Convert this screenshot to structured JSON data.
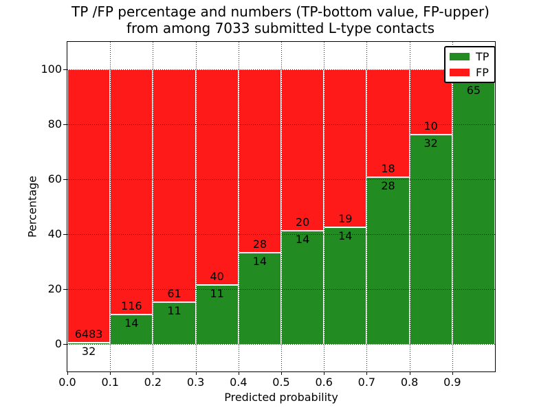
{
  "title": {
    "line1": "TP /FP percentage and numbers (TP-bottom value, FP-upper)",
    "line2": "from among 7033 submitted L-type contacts"
  },
  "chart_data": {
    "type": "bar",
    "stacked": true,
    "title": "TP /FP percentage and numbers (TP-bottom value, FP-upper)\nfrom among 7033 submitted L-type contacts",
    "xlabel": "Predicted probability",
    "ylabel": "Percentage",
    "total_submitted_contacts": 7033,
    "xlim": [
      0.0,
      1.0
    ],
    "ylim": [
      -10,
      110
    ],
    "grid": true,
    "xticks": [
      0.0,
      0.1,
      0.2,
      0.3,
      0.4,
      0.5,
      0.6,
      0.7,
      0.8,
      0.9
    ],
    "xtick_labels": [
      "0.0",
      "0.1",
      "0.2",
      "0.3",
      "0.4",
      "0.5",
      "0.6",
      "0.7",
      "0.8",
      "0.9"
    ],
    "yticks": [
      0,
      20,
      40,
      60,
      80,
      100
    ],
    "ytick_labels": [
      "0",
      "20",
      "40",
      "60",
      "80",
      "100"
    ],
    "bin_edges": [
      0.0,
      0.1,
      0.2,
      0.3,
      0.4,
      0.5,
      0.6,
      0.7,
      0.8,
      0.9,
      1.0
    ],
    "colors": {
      "tp": "#228b22",
      "fp": "#ff1a1a"
    },
    "legend": {
      "position": "upper right",
      "entries": [
        {
          "label": "TP",
          "color": "#228b22"
        },
        {
          "label": "FP",
          "color": "#ff1a1a"
        }
      ]
    },
    "bars": [
      {
        "x_range": [
          0.0,
          0.1
        ],
        "tp_count": 32,
        "fp_count": 6483,
        "tp_pct": 0.49,
        "tp_label": "32",
        "fp_label": "6483"
      },
      {
        "x_range": [
          0.1,
          0.2
        ],
        "tp_count": 14,
        "fp_count": 116,
        "tp_pct": 10.77,
        "tp_label": "14",
        "fp_label": "116"
      },
      {
        "x_range": [
          0.2,
          0.3
        ],
        "tp_count": 11,
        "fp_count": 61,
        "tp_pct": 15.28,
        "tp_label": "11",
        "fp_label": "61"
      },
      {
        "x_range": [
          0.3,
          0.4
        ],
        "tp_count": 11,
        "fp_count": 40,
        "tp_pct": 21.57,
        "tp_label": "11",
        "fp_label": "40"
      },
      {
        "x_range": [
          0.4,
          0.5
        ],
        "tp_count": 14,
        "fp_count": 28,
        "tp_pct": 33.33,
        "tp_label": "14",
        "fp_label": "28"
      },
      {
        "x_range": [
          0.5,
          0.6
        ],
        "tp_count": 14,
        "fp_count": 20,
        "tp_pct": 41.18,
        "tp_label": "14",
        "fp_label": "20"
      },
      {
        "x_range": [
          0.6,
          0.7
        ],
        "tp_count": 14,
        "fp_count": 19,
        "tp_pct": 42.42,
        "tp_label": "14",
        "fp_label": "19"
      },
      {
        "x_range": [
          0.7,
          0.8
        ],
        "tp_count": 28,
        "fp_count": 18,
        "tp_pct": 60.87,
        "tp_label": "28",
        "fp_label": "18"
      },
      {
        "x_range": [
          0.8,
          0.9
        ],
        "tp_count": 32,
        "fp_count": 10,
        "tp_pct": 76.19,
        "tp_label": "32",
        "fp_label": "10"
      },
      {
        "x_range": [
          0.9,
          1.0
        ],
        "tp_count": 65,
        "fp_count": null,
        "tp_pct": 95.59,
        "tp_label": "65",
        "fp_label": ""
      }
    ]
  }
}
